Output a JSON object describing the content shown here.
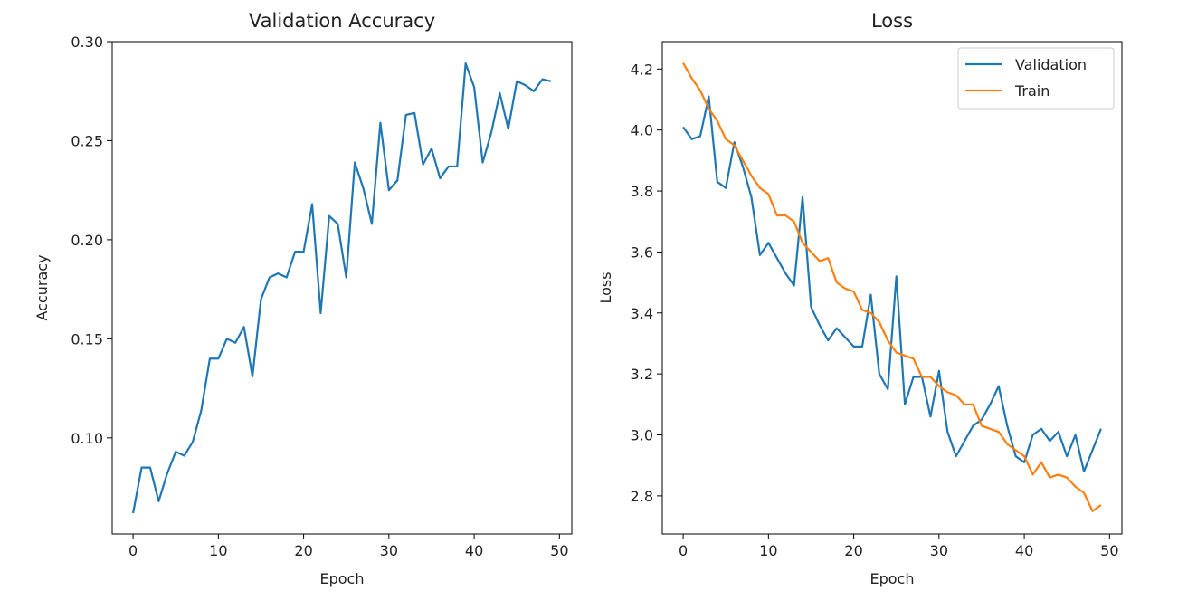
{
  "chart_data": [
    {
      "type": "line",
      "title": "Validation Accuracy",
      "xlabel": "Epoch",
      "ylabel": "Accuracy",
      "xlim": [
        -2.45,
        51.45
      ],
      "ylim": [
        0.0515,
        0.3
      ],
      "x_ticks": [
        0,
        10,
        20,
        30,
        40,
        50
      ],
      "y_ticks": [
        0.1,
        0.15,
        0.2,
        0.25,
        0.3
      ],
      "x_tick_labels": [
        "0",
        "10",
        "20",
        "30",
        "40",
        "50"
      ],
      "y_tick_labels": [
        "0.10",
        "0.15",
        "0.20",
        "0.25",
        "0.30"
      ],
      "grid": false,
      "legend": null,
      "series": [
        {
          "color": "#1f77b4",
          "x": [
            0,
            1,
            2,
            3,
            4,
            5,
            6,
            7,
            8,
            9,
            10,
            11,
            12,
            13,
            14,
            15,
            16,
            17,
            18,
            19,
            20,
            21,
            22,
            23,
            24,
            25,
            26,
            27,
            28,
            29,
            30,
            31,
            32,
            33,
            34,
            35,
            36,
            37,
            38,
            39,
            40,
            41,
            42,
            43,
            44,
            45,
            46,
            47,
            48,
            49
          ],
          "values": [
            0.062,
            0.085,
            0.085,
            0.068,
            0.082,
            0.093,
            0.091,
            0.098,
            0.114,
            0.14,
            0.14,
            0.15,
            0.148,
            0.156,
            0.131,
            0.17,
            0.181,
            0.183,
            0.181,
            0.194,
            0.194,
            0.218,
            0.163,
            0.212,
            0.208,
            0.181,
            0.239,
            0.226,
            0.208,
            0.259,
            0.225,
            0.23,
            0.263,
            0.264,
            0.238,
            0.246,
            0.231,
            0.237,
            0.237,
            0.289,
            0.277,
            0.239,
            0.254,
            0.274,
            0.256,
            0.28,
            0.278,
            0.275,
            0.281,
            0.28
          ]
        }
      ]
    },
    {
      "type": "line",
      "title": "Loss",
      "xlabel": "Epoch",
      "ylabel": "Loss",
      "xlim": [
        -2.45,
        51.45
      ],
      "ylim": [
        2.675,
        4.29
      ],
      "x_ticks": [
        0,
        10,
        20,
        30,
        40,
        50
      ],
      "y_ticks": [
        2.8,
        3.0,
        3.2,
        3.4,
        3.6,
        3.8,
        4.0,
        4.2
      ],
      "x_tick_labels": [
        "0",
        "10",
        "20",
        "30",
        "40",
        "50"
      ],
      "y_tick_labels": [
        "2.8",
        "3.0",
        "3.2",
        "3.4",
        "3.6",
        "3.8",
        "4.0",
        "4.2"
      ],
      "grid": false,
      "legend": "top-right",
      "series": [
        {
          "name": "Validation",
          "color": "#1f77b4",
          "x": [
            0,
            1,
            2,
            3,
            4,
            5,
            6,
            7,
            8,
            9,
            10,
            11,
            12,
            13,
            14,
            15,
            16,
            17,
            18,
            19,
            20,
            21,
            22,
            23,
            24,
            25,
            26,
            27,
            28,
            29,
            30,
            31,
            32,
            33,
            34,
            35,
            36,
            37,
            38,
            39,
            40,
            41,
            42,
            43,
            44,
            45,
            46,
            47,
            48,
            49
          ],
          "values": [
            4.01,
            3.97,
            3.98,
            4.11,
            3.83,
            3.81,
            3.96,
            3.88,
            3.78,
            3.59,
            3.63,
            3.58,
            3.53,
            3.49,
            3.78,
            3.42,
            3.36,
            3.31,
            3.35,
            3.32,
            3.29,
            3.29,
            3.46,
            3.2,
            3.15,
            3.52,
            3.1,
            3.19,
            3.19,
            3.06,
            3.21,
            3.01,
            2.93,
            2.98,
            3.03,
            3.05,
            3.1,
            3.16,
            3.03,
            2.93,
            2.91,
            3.0,
            3.02,
            2.98,
            3.01,
            2.93,
            3.0,
            2.88,
            2.95,
            3.02
          ]
        },
        {
          "name": "Train",
          "color": "#ff7f0e",
          "x": [
            0,
            1,
            2,
            3,
            4,
            5,
            6,
            7,
            8,
            9,
            10,
            11,
            12,
            13,
            14,
            15,
            16,
            17,
            18,
            19,
            20,
            21,
            22,
            23,
            24,
            25,
            26,
            27,
            28,
            29,
            30,
            31,
            32,
            33,
            34,
            35,
            36,
            37,
            38,
            39,
            40,
            41,
            42,
            43,
            44,
            45,
            46,
            47,
            48,
            49
          ],
          "values": [
            4.22,
            4.17,
            4.13,
            4.07,
            4.03,
            3.97,
            3.95,
            3.9,
            3.85,
            3.81,
            3.79,
            3.72,
            3.72,
            3.7,
            3.63,
            3.6,
            3.57,
            3.58,
            3.5,
            3.48,
            3.47,
            3.41,
            3.4,
            3.37,
            3.31,
            3.27,
            3.26,
            3.25,
            3.19,
            3.19,
            3.16,
            3.14,
            3.13,
            3.1,
            3.1,
            3.03,
            3.02,
            3.01,
            2.97,
            2.95,
            2.93,
            2.87,
            2.91,
            2.86,
            2.87,
            2.86,
            2.83,
            2.81,
            2.75,
            2.77
          ]
        }
      ]
    }
  ]
}
